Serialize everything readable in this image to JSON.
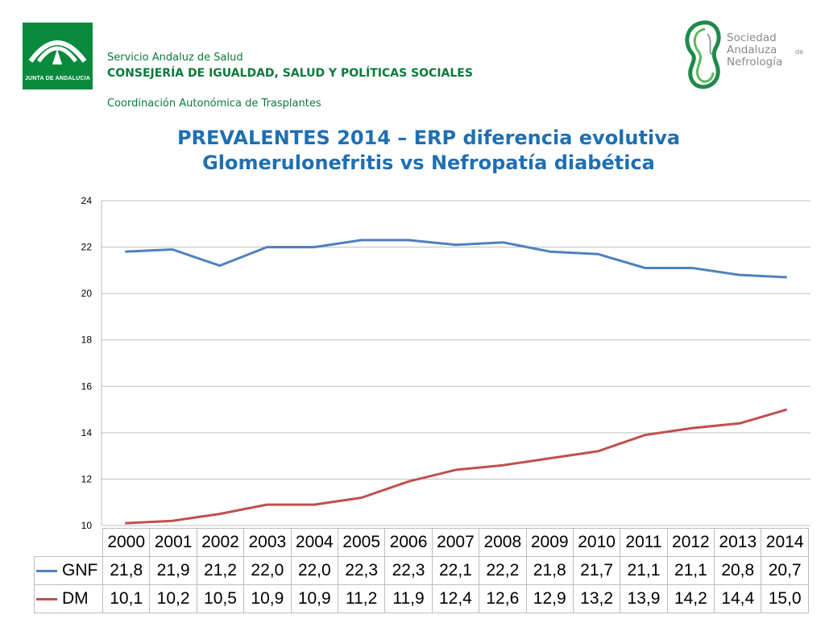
{
  "header": {
    "junta_logo_text": "JUNTA DE ANDALUCIA",
    "line1": "Servicio Andaluz de Salud",
    "line2": "CONSEJERÍA DE IGUALDAD, SALUD Y POLÍTICAS SOCIALES",
    "line3": "Coordinación Autonómica de Trasplantes"
  },
  "san_logo": {
    "line1": "Sociedad",
    "line2": "Andaluza",
    "de": "de",
    "line3": "Nefrología"
  },
  "title": {
    "line1": "PREVALENTES 2014 – ERP diferencia evolutiva",
    "line2": "Glomerulonefritis vs Nefropatía diabética"
  },
  "colors": {
    "gnf": "#4f81bd",
    "dm": "#c0504d",
    "title": "#1f6fb2",
    "brand_green": "#0a8a3c"
  },
  "chart_data": {
    "type": "line",
    "categories": [
      "2000",
      "2001",
      "2002",
      "2003",
      "2004",
      "2005",
      "2006",
      "2007",
      "2008",
      "2009",
      "2010",
      "2011",
      "2012",
      "2013",
      "2014"
    ],
    "series": [
      {
        "name": "GNF",
        "values": [
          21.8,
          21.9,
          21.2,
          22.0,
          22.0,
          22.3,
          22.3,
          22.1,
          22.2,
          21.8,
          21.7,
          21.1,
          21.1,
          20.8,
          20.7
        ],
        "labels": [
          "21,8",
          "21,9",
          "21,2",
          "22,0",
          "22,0",
          "22,3",
          "22,3",
          "22,1",
          "22,2",
          "21,8",
          "21,7",
          "21,1",
          "21,1",
          "20,8",
          "20,7"
        ]
      },
      {
        "name": "DM",
        "values": [
          10.1,
          10.2,
          10.5,
          10.9,
          10.9,
          11.2,
          11.9,
          12.4,
          12.6,
          12.9,
          13.2,
          13.9,
          14.2,
          14.4,
          15.0
        ],
        "labels": [
          "10,1",
          "10,2",
          "10,5",
          "10,9",
          "10,9",
          "11,2",
          "11,9",
          "12,4",
          "12,6",
          "12,9",
          "13,2",
          "13,9",
          "14,2",
          "14,4",
          "15,0"
        ]
      }
    ],
    "ylim": [
      10,
      24
    ],
    "yticks": [
      10,
      12,
      14,
      16,
      18,
      20,
      22,
      24
    ],
    "grid": true,
    "legend": "data-table-below"
  }
}
